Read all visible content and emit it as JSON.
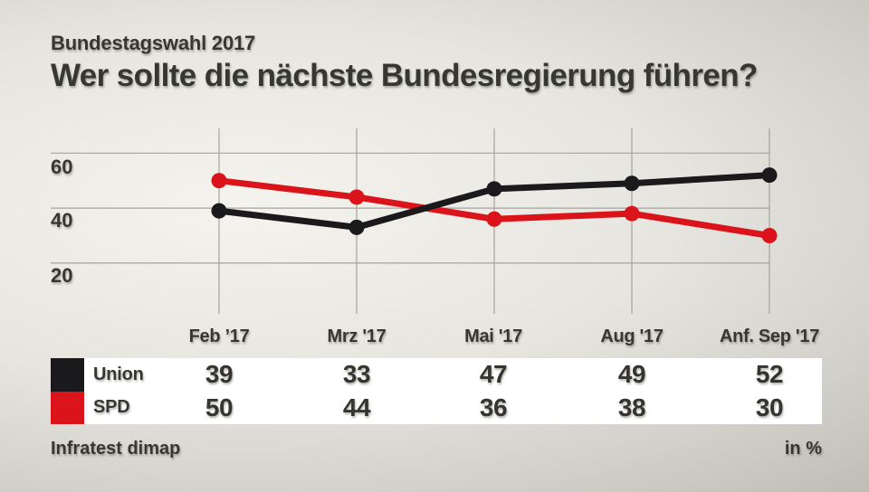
{
  "header": {
    "kicker": "Bundestagswahl 2017",
    "title": "Wer sollte die nächste Bundesregierung führen?"
  },
  "chart_data": {
    "type": "line",
    "title": "Wer sollte die nächste Bundesregierung führen?",
    "categories": [
      "Feb ’17",
      "Mrz '17",
      "Mai '17",
      "Aug '17",
      "Anf. Sep '17"
    ],
    "series": [
      {
        "name": "Union",
        "color": "#1a191b",
        "values": [
          39,
          33,
          47,
          49,
          52
        ]
      },
      {
        "name": "SPD",
        "color": "#da141a",
        "values": [
          50,
          44,
          36,
          38,
          30
        ]
      }
    ],
    "yticks": [
      60,
      40,
      20
    ],
    "ylim": [
      0,
      70
    ],
    "unit": "%",
    "grid": true,
    "grid_color": "#a4a39d",
    "legend_position": "table-below"
  },
  "footer": {
    "source": "Infratest dimap",
    "unit_label": "in %"
  }
}
